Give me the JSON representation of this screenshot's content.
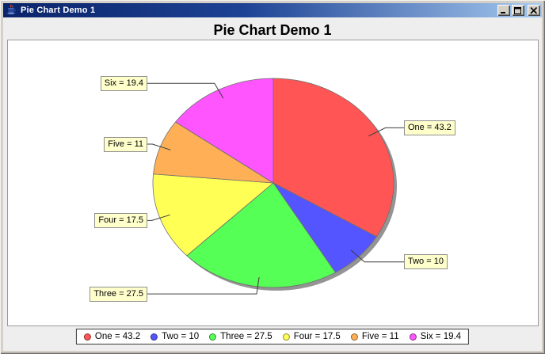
{
  "window": {
    "title": "Pie Chart Demo 1",
    "icons": {
      "app": "java-cup-icon",
      "minimize": "minimize-icon",
      "maximize": "maximize-icon",
      "close": "close-icon"
    }
  },
  "chart_data": {
    "type": "pie",
    "title": "Pie Chart Demo 1",
    "start_angle_deg": 90,
    "direction": "clockwise",
    "slices": [
      {
        "name": "One",
        "value": 43.2,
        "label": "One = 43.2",
        "color": "#FF5555"
      },
      {
        "name": "Two",
        "value": 10,
        "label": "Two = 10",
        "color": "#5555FF"
      },
      {
        "name": "Three",
        "value": 27.5,
        "label": "Three = 27.5",
        "color": "#55FF55"
      },
      {
        "name": "Four",
        "value": 17.5,
        "label": "Four = 17.5",
        "color": "#FFFF55"
      },
      {
        "name": "Five",
        "value": 11,
        "label": "Five = 11",
        "color": "#FFAF55"
      },
      {
        "name": "Six",
        "value": 19.4,
        "label": "Six = 19.4",
        "color": "#FF55FF"
      }
    ],
    "legend": {
      "position": "bottom",
      "items": [
        "One = 43.2",
        "Two = 10",
        "Three = 27.5",
        "Four = 17.5",
        "Five = 11",
        "Six = 19.4"
      ]
    },
    "style": {
      "chart_background": "#EEEEEE",
      "plot_background": "#FFFFFF",
      "plot_border": "#9A9A9A",
      "slice_outline": "#6E6E6E",
      "shadow": "#949494",
      "label_background": "#FFFFCC",
      "label_border": "#8F8F8F",
      "leader_line": "#3C3C3C",
      "titlebar_gradient_left": "#0A246A",
      "titlebar_gradient_right": "#A6CAF0"
    }
  }
}
